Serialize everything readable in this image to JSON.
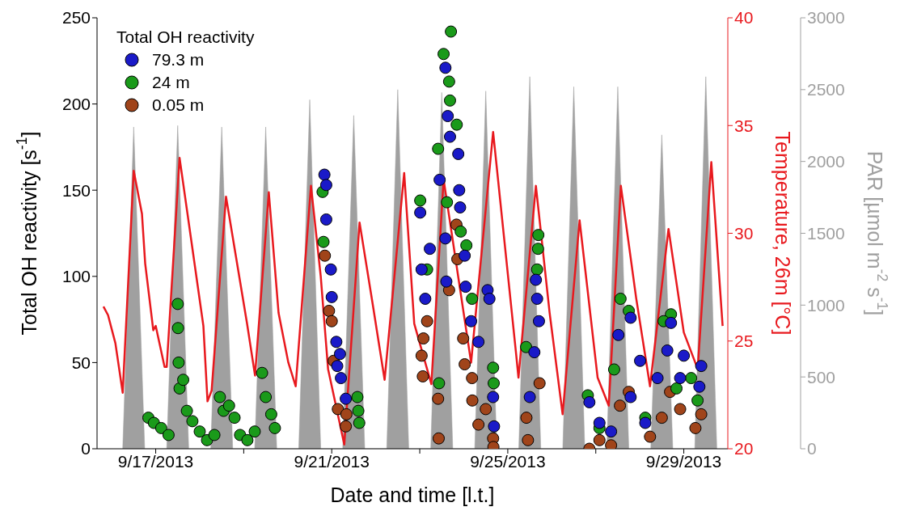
{
  "chart_data": {
    "type": "scatter",
    "xlabel": "Date and time [l.t.]",
    "ylabel": "Total OH reactivity [s$^{-1}$]",
    "y2label": "Temperature, 26m [°C]",
    "y3label": "PAR [µmol m$^{-2}$ s$^{-1}$]",
    "legend_title": "Total OH reactivity",
    "legend": "top left",
    "grid": false,
    "marker": "circle",
    "line_style": "solid",
    "xlim": [
      "2013-09-15T16:00",
      "2013-09-30T00:00"
    ],
    "xticks": [
      {
        "value": "2013-09-17",
        "label": "9/17/2013"
      },
      {
        "value": "2013-09-19",
        "label": null
      },
      {
        "value": "2013-09-21",
        "label": "9/21/2013"
      },
      {
        "value": "2013-09-23",
        "label": null
      },
      {
        "value": "2013-09-25",
        "label": "9/25/2013"
      },
      {
        "value": "2013-09-27",
        "label": null
      },
      {
        "value": "2013-09-29",
        "label": "9/29/2013"
      }
    ],
    "ylim": [
      0,
      250
    ],
    "yticks": [
      0,
      50,
      100,
      150,
      200,
      250
    ],
    "y2lim": [
      20,
      40
    ],
    "y2ticks": [
      20,
      25,
      30,
      35,
      40
    ],
    "y3lim": [
      0,
      3000
    ],
    "y3ticks": [
      0,
      500,
      1000,
      1500,
      2000,
      2500,
      3000
    ],
    "series": [
      {
        "type": "area",
        "axis": "y3",
        "marker": "none",
        "color": "#a0a0a0",
        "x": [
          "2013-09-16T06:00",
          "2013-09-16T12:00",
          "2013-09-16T18:00",
          "2013-09-17T06:00",
          "2013-09-17T12:00",
          "2013-09-17T18:00",
          "2013-09-18T06:00",
          "2013-09-18T12:00",
          "2013-09-18T18:00",
          "2013-09-19T06:00",
          "2013-09-19T12:00",
          "2013-09-19T18:00",
          "2013-09-20T06:00",
          "2013-09-20T12:00",
          "2013-09-20T18:00",
          "2013-09-21T06:00",
          "2013-09-21T12:00",
          "2013-09-21T18:00",
          "2013-09-22T06:00",
          "2013-09-22T12:00",
          "2013-09-22T18:00",
          "2013-09-23T06:00",
          "2013-09-23T12:00",
          "2013-09-23T18:00",
          "2013-09-24T06:00",
          "2013-09-24T12:00",
          "2013-09-24T18:00",
          "2013-09-25T06:00",
          "2013-09-25T12:00",
          "2013-09-25T18:00",
          "2013-09-26T06:00",
          "2013-09-26T12:00",
          "2013-09-26T18:00",
          "2013-09-27T06:00",
          "2013-09-27T12:00",
          "2013-09-27T18:00",
          "2013-09-28T06:00",
          "2013-09-28T12:00",
          "2013-09-28T18:00",
          "2013-09-29T06:00",
          "2013-09-29T12:00",
          "2013-09-29T18:00"
        ],
        "values": [
          0,
          2240,
          0,
          0,
          2250,
          0,
          0,
          2240,
          0,
          0,
          2240,
          0,
          0,
          2430,
          0,
          0,
          2320,
          0,
          0,
          2500,
          0,
          0,
          2480,
          0,
          0,
          2490,
          0,
          0,
          2590,
          0,
          0,
          2520,
          0,
          0,
          2520,
          0,
          0,
          2185,
          0,
          0,
          2590,
          0
        ]
      },
      {
        "type": "line",
        "axis": "y2",
        "marker": "none",
        "color": "#e8191e",
        "x": [
          "2013-09-15T19:30",
          "2013-09-15T22:00",
          "2013-09-16T02:00",
          "2013-09-16T06:00",
          "2013-09-16T12:00",
          "2013-09-16T16:30",
          "2013-09-16T18:15",
          "2013-09-16T22:40",
          "2013-09-17T00:00",
          "2013-09-17T04:50",
          "2013-09-17T06:00",
          "2013-09-17T13:00",
          "2013-09-17T23:50",
          "2013-09-18T02:00",
          "2013-09-18T04:15",
          "2013-09-18T06:30",
          "2013-09-18T14:20",
          "2013-09-19T01:50",
          "2013-09-19T06:10",
          "2013-09-19T13:40",
          "2013-09-19T19:00",
          "2013-09-20T00:20",
          "2013-09-20T04:20",
          "2013-09-20T12:40",
          "2013-09-20T18:00",
          "2013-09-20T22:00",
          "2013-09-21T06:50",
          "2013-09-21T15:10",
          "2013-09-21T22:10",
          "2013-09-22T04:50",
          "2013-09-22T15:30",
          "2013-09-22T21:00",
          "2013-09-23T06:20",
          "2013-09-23T13:00",
          "2013-09-24T04:00",
          "2013-09-24T16:00",
          "2013-09-25T04:40",
          "2013-09-25T05:50",
          "2013-09-25T15:20",
          "2013-09-25T22:50",
          "2013-09-26T05:55",
          "2013-09-26T15:10",
          "2013-09-27T01:00",
          "2013-09-27T07:05",
          "2013-09-27T13:40",
          "2013-09-27T22:00",
          "2013-09-28T05:35",
          "2013-09-28T15:40",
          "2013-09-29T00:00",
          "2013-09-29T07:35",
          "2013-09-29T15:00",
          "2013-09-29T21:10"
        ],
        "values": [
          26.6,
          26.2,
          24.9,
          22.6,
          32.9,
          30.9,
          28.6,
          25.5,
          25.7,
          23.8,
          23.8,
          33.5,
          27.0,
          25.7,
          22.2,
          22.7,
          31.7,
          25.8,
          23.4,
          31.9,
          26.3,
          24.0,
          22.9,
          32.2,
          28.0,
          23.7,
          20.2,
          30.5,
          26.8,
          23.2,
          32.8,
          25.8,
          23.0,
          32.5,
          24.0,
          34.7,
          24.3,
          23.3,
          32.2,
          26.3,
          21.6,
          30.6,
          23.3,
          22.0,
          32.2,
          27.0,
          22.9,
          30.2,
          25.4,
          23.7,
          33.3,
          25.7
        ]
      },
      {
        "name": "79.3 m",
        "color": "#1a1ac8",
        "x": [
          "2013-09-20T20:00",
          "2013-09-20T21:00",
          "2013-09-20T21:00",
          "2013-09-20T23:30",
          "2013-09-21T00:00",
          "2013-09-21T02:30",
          "2013-09-21T04:30",
          "2013-09-21T03:00",
          "2013-09-21T05:00",
          "2013-09-21T07:40",
          "2013-09-23T00:15",
          "2013-09-23T05:30",
          "2013-09-23T01:00",
          "2013-09-23T03:00",
          "2013-09-23T10:50",
          "2013-09-23T14:00",
          "2013-09-23T15:15",
          "2013-09-23T16:30",
          "2013-09-23T21:00",
          "2013-09-23T21:30",
          "2013-09-23T22:00",
          "2013-09-23T14:00",
          "2013-09-23T14:30",
          "2013-09-24T00:30",
          "2013-09-24T01:00",
          "2013-09-24T04:00",
          "2013-09-24T08:00",
          "2013-09-24T13:00",
          "2013-09-24T14:00",
          "2013-09-24T16:00",
          "2013-09-24T16:30",
          "2013-09-25T15:20",
          "2013-09-25T16:00",
          "2013-09-25T17:00",
          "2013-09-25T14:30",
          "2013-09-25T12:00",
          "2013-09-26T20:30",
          "2013-09-27T02:00",
          "2013-09-27T08:20",
          "2013-09-27T12:20",
          "2013-09-27T19:00",
          "2013-09-28T00:10",
          "2013-09-27T19:00",
          "2013-09-28T03:00",
          "2013-09-28T09:40",
          "2013-09-28T17:00",
          "2013-09-28T15:00",
          "2013-09-29T00:00",
          "2013-09-29T09:30",
          "2013-09-29T08:30",
          "2013-09-28T22:00"
        ],
        "values": [
          159,
          153,
          133,
          104,
          88,
          62,
          55,
          48,
          41,
          29,
          137,
          116,
          104,
          87,
          156,
          221,
          193,
          181,
          171,
          150,
          140,
          122,
          97,
          112,
          94,
          74,
          62,
          92,
          87,
          30,
          13,
          98,
          87,
          74,
          56,
          30,
          27,
          15,
          10,
          66,
          76,
          51,
          30,
          15,
          41,
          73,
          57,
          54,
          48,
          36,
          41
        ]
      },
      {
        "name": "24 m",
        "color": "#1a9a1a",
        "x": [
          "2013-09-16T20:00",
          "2013-09-16T23:00",
          "2013-09-17T03:00",
          "2013-09-17T07:00",
          "2013-09-17T12:00",
          "2013-09-17T12:10",
          "2013-09-17T12:30",
          "2013-09-17T13:00",
          "2013-09-17T15:00",
          "2013-09-17T17:00",
          "2013-09-17T20:00",
          "2013-09-18T00:00",
          "2013-09-18T04:00",
          "2013-09-18T08:00",
          "2013-09-18T11:00",
          "2013-09-18T13:00",
          "2013-09-18T16:00",
          "2013-09-18T19:00",
          "2013-09-18T22:00",
          "2013-09-19T02:00",
          "2013-09-19T06:00",
          "2013-09-19T10:00",
          "2013-09-19T12:00",
          "2013-09-19T15:00",
          "2013-09-19T17:00",
          "2013-09-20T19:00",
          "2013-09-20T19:30",
          "2013-09-21T14:00",
          "2013-09-21T14:30",
          "2013-09-21T15:00",
          "2013-09-23T00:15",
          "2013-09-23T10:00",
          "2013-09-23T13:00",
          "2013-09-23T17:00",
          "2013-09-23T16:00",
          "2013-09-23T16:30",
          "2013-09-23T20:10",
          "2013-09-23T14:50",
          "2013-09-23T22:20",
          "2013-09-24T01:25",
          "2013-09-23T04:00",
          "2013-09-23T10:30",
          "2013-09-24T04:30",
          "2013-09-24T16:00",
          "2013-09-24T16:20",
          "2013-09-25T16:40",
          "2013-09-25T16:30",
          "2013-09-25T16:00",
          "2013-09-25T10:00",
          "2013-09-27T13:30",
          "2013-09-27T18:00",
          "2013-09-27T10:00",
          "2013-09-26T19:40",
          "2013-09-27T02:00",
          "2013-09-28T17:00",
          "2013-09-28T13:00",
          "2013-09-28T20:00",
          "2013-09-29T07:30",
          "2013-09-28T03:00",
          "2013-09-29T04:00"
        ],
        "values": [
          18,
          15,
          12,
          8,
          84,
          70,
          50,
          35,
          40,
          22,
          16,
          10,
          5,
          8,
          30,
          22,
          25,
          18,
          8,
          5,
          10,
          44,
          30,
          20,
          12,
          149,
          120,
          30,
          22,
          15,
          144,
          174,
          229,
          242,
          213,
          202,
          188,
          143,
          126,
          118,
          104,
          38,
          87,
          47,
          38,
          124,
          116,
          104,
          59,
          87,
          80,
          46,
          31,
          12,
          78,
          74,
          35,
          28,
          18,
          41
        ]
      },
      {
        "name": "0.05 m",
        "color": "#a0441a",
        "x": [
          "2013-09-20T20:15",
          "2013-09-20T22:30",
          "2013-09-21T00:00",
          "2013-09-21T01:00",
          "2013-09-21T03:20",
          "2013-09-21T07:40",
          "2013-09-21T08:00",
          "2013-09-23T01:40",
          "2013-09-23T01:00",
          "2013-09-23T02:00",
          "2013-09-23T04:00",
          "2013-09-23T10:00",
          "2013-09-23T10:20",
          "2013-09-23T12:00",
          "2013-09-23T20:00",
          "2013-09-23T20:30",
          "2013-09-23T16:00",
          "2013-09-23T23:40",
          "2013-09-24T00:30",
          "2013-09-24T04:30",
          "2013-09-24T04:40",
          "2013-09-24T08:00",
          "2013-09-24T12:00",
          "2013-09-24T16:00",
          "2013-09-24T16:10",
          "2013-09-25T10:10",
          "2013-09-25T11:00",
          "2013-09-25T17:20",
          "2013-09-26T20:30",
          "2013-09-27T02:00",
          "2013-09-27T08:20",
          "2013-09-27T13:10",
          "2013-09-27T18:00",
          "2013-09-28T01:30",
          "2013-09-28T05:35",
          "2013-09-28T12:00",
          "2013-09-28T16:30",
          "2013-09-28T22:00",
          "2013-09-29T06:20",
          "2013-09-29T09:30"
        ],
        "values": [
          112,
          80,
          74,
          51,
          23,
          13,
          20,
          42,
          54,
          64,
          74,
          29,
          6,
          null,
          130,
          110,
          92,
          64,
          49,
          41,
          28,
          14,
          23,
          6,
          1,
          18,
          5,
          38,
          0,
          5,
          2,
          25,
          33,
          null,
          7,
          18,
          33,
          23,
          12,
          20
        ]
      }
    ]
  }
}
